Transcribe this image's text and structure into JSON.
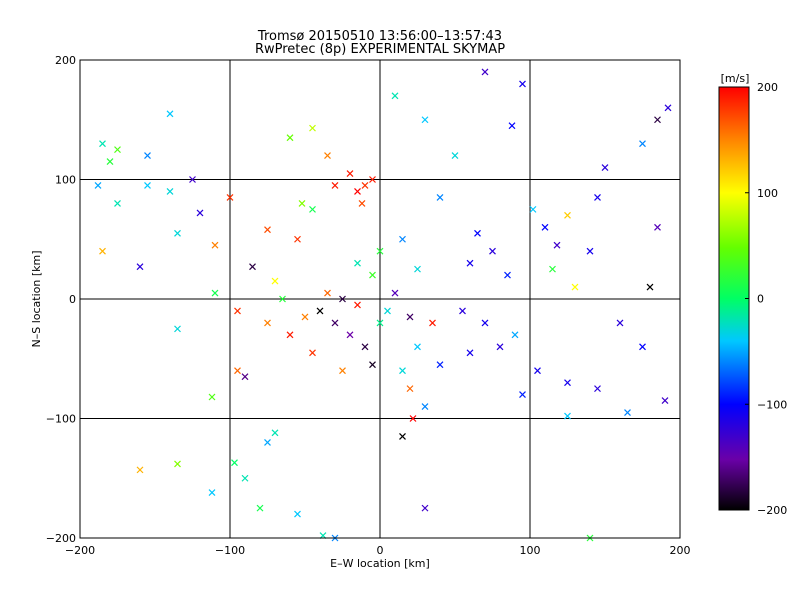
{
  "chart_data": {
    "type": "scatter",
    "title_line1": "Tromsø 20150510 13:56:00–13:57:43",
    "title_line2": "RwPretec (8p) EXPERIMENTAL SKYMAP",
    "xlabel": "E–W location [km]",
    "ylabel": "N–S location [km]",
    "xlim": [
      -200,
      200
    ],
    "ylim": [
      -200,
      200
    ],
    "xticks": [
      -200,
      -100,
      0,
      100,
      200
    ],
    "yticks": [
      -200,
      -100,
      0,
      100,
      200
    ],
    "grid": true,
    "colorbar": {
      "label": "[m/s]",
      "range": [
        -200,
        200
      ],
      "ticks": [
        200,
        100,
        0,
        -100,
        -200
      ],
      "colormap": "rainbow (black-purple-blue-cyan-green-yellow-red)"
    },
    "marker_types": [
      "x",
      "dot"
    ],
    "points": [
      {
        "x": 185,
        "y": 150,
        "v": -180,
        "m": "x"
      },
      {
        "x": 192,
        "y": 160,
        "v": -120,
        "m": "x"
      },
      {
        "x": 175,
        "y": 130,
        "v": -60,
        "m": "x"
      },
      {
        "x": 88,
        "y": 145,
        "v": -100,
        "m": "x"
      },
      {
        "x": 95,
        "y": 180,
        "v": -110,
        "m": "x"
      },
      {
        "x": 70,
        "y": 190,
        "v": -130,
        "m": "x"
      },
      {
        "x": 150,
        "y": 110,
        "v": -120,
        "m": "x"
      },
      {
        "x": 145,
        "y": 85,
        "v": -110,
        "m": "x"
      },
      {
        "x": 125,
        "y": 70,
        "v": 120,
        "m": "x"
      },
      {
        "x": 110,
        "y": 60,
        "v": -100,
        "m": "x"
      },
      {
        "x": 118,
        "y": 45,
        "v": -130,
        "m": "x"
      },
      {
        "x": 102,
        "y": 75,
        "v": -40,
        "m": "x"
      },
      {
        "x": 140,
        "y": 40,
        "v": -110,
        "m": "x"
      },
      {
        "x": 180,
        "y": 10,
        "v": -200,
        "m": "x"
      },
      {
        "x": 160,
        "y": -20,
        "v": -120,
        "m": "x"
      },
      {
        "x": 175,
        "y": -40,
        "v": -100,
        "m": "x"
      },
      {
        "x": 145,
        "y": -75,
        "v": -120,
        "m": "x"
      },
      {
        "x": 125,
        "y": -70,
        "v": -110,
        "m": "x"
      },
      {
        "x": 165,
        "y": -95,
        "v": -60,
        "m": "x"
      },
      {
        "x": 190,
        "y": -85,
        "v": -130,
        "m": "x"
      },
      {
        "x": 125,
        "y": -98,
        "v": -40,
        "m": "x"
      },
      {
        "x": 105,
        "y": -60,
        "v": -110,
        "m": "x"
      },
      {
        "x": 95,
        "y": -80,
        "v": -90,
        "m": "x"
      },
      {
        "x": 140,
        "y": -200,
        "v": 20,
        "m": "x"
      },
      {
        "x": 30,
        "y": -175,
        "v": -130,
        "m": "x"
      },
      {
        "x": -30,
        "y": -200,
        "v": -60,
        "m": "x"
      },
      {
        "x": -38,
        "y": -198,
        "v": -20,
        "m": "x"
      },
      {
        "x": -55,
        "y": -180,
        "v": -40,
        "m": "x"
      },
      {
        "x": -80,
        "y": -175,
        "v": 10,
        "m": "x"
      },
      {
        "x": -90,
        "y": -150,
        "v": -20,
        "m": "x"
      },
      {
        "x": -97,
        "y": -137,
        "v": 0,
        "m": "x"
      },
      {
        "x": -112,
        "y": -162,
        "v": -40,
        "m": "x"
      },
      {
        "x": -135,
        "y": -138,
        "v": 60,
        "m": "x"
      },
      {
        "x": -160,
        "y": -143,
        "v": 130,
        "m": "x"
      },
      {
        "x": -75,
        "y": -120,
        "v": -50,
        "m": "x"
      },
      {
        "x": -70,
        "y": -112,
        "v": -20,
        "m": "x"
      },
      {
        "x": -112,
        "y": -82,
        "v": 40,
        "m": "x"
      },
      {
        "x": -95,
        "y": -60,
        "v": 160,
        "m": "x"
      },
      {
        "x": -90,
        "y": -65,
        "v": -160,
        "m": "x"
      },
      {
        "x": -135,
        "y": -25,
        "v": -30,
        "m": "x"
      },
      {
        "x": -110,
        "y": 5,
        "v": 10,
        "m": "x"
      },
      {
        "x": -95,
        "y": -10,
        "v": 180,
        "m": "x"
      },
      {
        "x": -160,
        "y": 27,
        "v": -120,
        "m": "x"
      },
      {
        "x": -135,
        "y": 55,
        "v": -30,
        "m": "x"
      },
      {
        "x": -120,
        "y": 72,
        "v": -120,
        "m": "x"
      },
      {
        "x": -110,
        "y": 45,
        "v": 150,
        "m": "x"
      },
      {
        "x": -125,
        "y": 100,
        "v": -130,
        "m": "x"
      },
      {
        "x": -140,
        "y": 90,
        "v": -30,
        "m": "x"
      },
      {
        "x": -175,
        "y": 80,
        "v": -20,
        "m": "x"
      },
      {
        "x": -188,
        "y": 95,
        "v": -50,
        "m": "x"
      },
      {
        "x": -180,
        "y": 115,
        "v": 20,
        "m": "x"
      },
      {
        "x": -175,
        "y": 125,
        "v": 40,
        "m": "x"
      },
      {
        "x": -185,
        "y": 130,
        "v": -20,
        "m": "x"
      },
      {
        "x": -155,
        "y": 95,
        "v": -40,
        "m": "x"
      },
      {
        "x": -140,
        "y": 155,
        "v": -40,
        "m": "x"
      },
      {
        "x": -155,
        "y": 120,
        "v": -60,
        "m": "x"
      },
      {
        "x": -185,
        "y": 40,
        "v": 130,
        "m": "x"
      },
      {
        "x": -85,
        "y": 27,
        "v": -180,
        "m": "x"
      },
      {
        "x": -100,
        "y": 85,
        "v": 180,
        "m": "x"
      },
      {
        "x": -75,
        "y": 58,
        "v": 170,
        "m": "x"
      },
      {
        "x": -55,
        "y": 50,
        "v": 180,
        "m": "x"
      },
      {
        "x": -52,
        "y": 80,
        "v": 60,
        "m": "x"
      },
      {
        "x": -60,
        "y": 135,
        "v": 50,
        "m": "x"
      },
      {
        "x": -45,
        "y": 143,
        "v": 80,
        "m": "x"
      },
      {
        "x": -30,
        "y": 95,
        "v": 190,
        "m": "x"
      },
      {
        "x": -20,
        "y": 105,
        "v": 190,
        "m": "x"
      },
      {
        "x": -15,
        "y": 90,
        "v": 200,
        "m": "x"
      },
      {
        "x": -10,
        "y": 95,
        "v": 180,
        "m": "x"
      },
      {
        "x": -5,
        "y": 100,
        "v": 190,
        "m": "x"
      },
      {
        "x": -12,
        "y": 80,
        "v": 170,
        "m": "x"
      },
      {
        "x": -35,
        "y": 120,
        "v": 150,
        "m": "x"
      },
      {
        "x": -45,
        "y": 75,
        "v": 10,
        "m": "x"
      },
      {
        "x": 10,
        "y": 170,
        "v": -20,
        "m": "x"
      },
      {
        "x": 30,
        "y": 150,
        "v": -40,
        "m": "x"
      },
      {
        "x": 50,
        "y": 120,
        "v": -30,
        "m": "x"
      },
      {
        "x": 40,
        "y": 85,
        "v": -60,
        "m": "x"
      },
      {
        "x": 65,
        "y": 55,
        "v": -100,
        "m": "x"
      },
      {
        "x": 75,
        "y": 40,
        "v": -120,
        "m": "x"
      },
      {
        "x": 60,
        "y": 30,
        "v": -110,
        "m": "x"
      },
      {
        "x": 85,
        "y": 20,
        "v": -90,
        "m": "x"
      },
      {
        "x": 55,
        "y": -10,
        "v": -120,
        "m": "x"
      },
      {
        "x": 60,
        "y": -45,
        "v": -110,
        "m": "x"
      },
      {
        "x": 40,
        "y": -55,
        "v": -90,
        "m": "x"
      },
      {
        "x": 25,
        "y": -40,
        "v": -40,
        "m": "x"
      },
      {
        "x": 15,
        "y": -60,
        "v": -30,
        "m": "x"
      },
      {
        "x": 20,
        "y": -75,
        "v": 160,
        "m": "x"
      },
      {
        "x": 30,
        "y": -90,
        "v": -60,
        "m": "x"
      },
      {
        "x": 15,
        "y": -115,
        "v": -200,
        "m": "x"
      },
      {
        "x": 22,
        "y": -100,
        "v": 200,
        "m": "x"
      },
      {
        "x": -5,
        "y": -55,
        "v": -190,
        "m": "x"
      },
      {
        "x": -10,
        "y": -40,
        "v": -180,
        "m": "x"
      },
      {
        "x": -20,
        "y": -30,
        "v": -150,
        "m": "x"
      },
      {
        "x": -30,
        "y": -20,
        "v": -170,
        "m": "x"
      },
      {
        "x": -40,
        "y": -10,
        "v": -200,
        "m": "x"
      },
      {
        "x": -25,
        "y": 0,
        "v": -180,
        "m": "x"
      },
      {
        "x": -15,
        "y": -5,
        "v": 190,
        "m": "x"
      },
      {
        "x": -35,
        "y": 5,
        "v": 160,
        "m": "x"
      },
      {
        "x": -50,
        "y": -15,
        "v": 150,
        "m": "x"
      },
      {
        "x": -60,
        "y": -30,
        "v": 190,
        "m": "x"
      },
      {
        "x": -45,
        "y": -45,
        "v": 180,
        "m": "x"
      },
      {
        "x": -25,
        "y": -60,
        "v": 150,
        "m": "x"
      },
      {
        "x": 0,
        "y": -20,
        "v": -10,
        "m": "x"
      },
      {
        "x": 5,
        "y": -10,
        "v": -30,
        "m": "x"
      },
      {
        "x": 10,
        "y": 5,
        "v": -140,
        "m": "x"
      },
      {
        "x": 20,
        "y": -15,
        "v": -170,
        "m": "x"
      },
      {
        "x": 35,
        "y": -20,
        "v": 190,
        "m": "x"
      },
      {
        "x": 25,
        "y": 25,
        "v": -30,
        "m": "x"
      },
      {
        "x": -5,
        "y": 20,
        "v": 30,
        "m": "x"
      },
      {
        "x": -15,
        "y": 30,
        "v": -20,
        "m": "x"
      },
      {
        "x": 0,
        "y": 40,
        "v": 20,
        "m": "x"
      },
      {
        "x": 15,
        "y": 50,
        "v": -60,
        "m": "x"
      },
      {
        "x": -65,
        "y": 0,
        "v": 20,
        "m": "x"
      },
      {
        "x": -75,
        "y": -20,
        "v": 150,
        "m": "x"
      },
      {
        "x": -70,
        "y": 15,
        "v": 100,
        "m": "x"
      },
      {
        "x": 70,
        "y": -20,
        "v": -110,
        "m": "x"
      },
      {
        "x": 80,
        "y": -40,
        "v": -120,
        "m": "x"
      },
      {
        "x": 90,
        "y": -30,
        "v": -50,
        "m": "x"
      },
      {
        "x": 115,
        "y": 25,
        "v": 20,
        "m": "x"
      },
      {
        "x": 130,
        "y": 10,
        "v": 100,
        "m": "x"
      },
      {
        "x": 185,
        "y": 60,
        "v": -140,
        "m": "x"
      }
    ]
  }
}
